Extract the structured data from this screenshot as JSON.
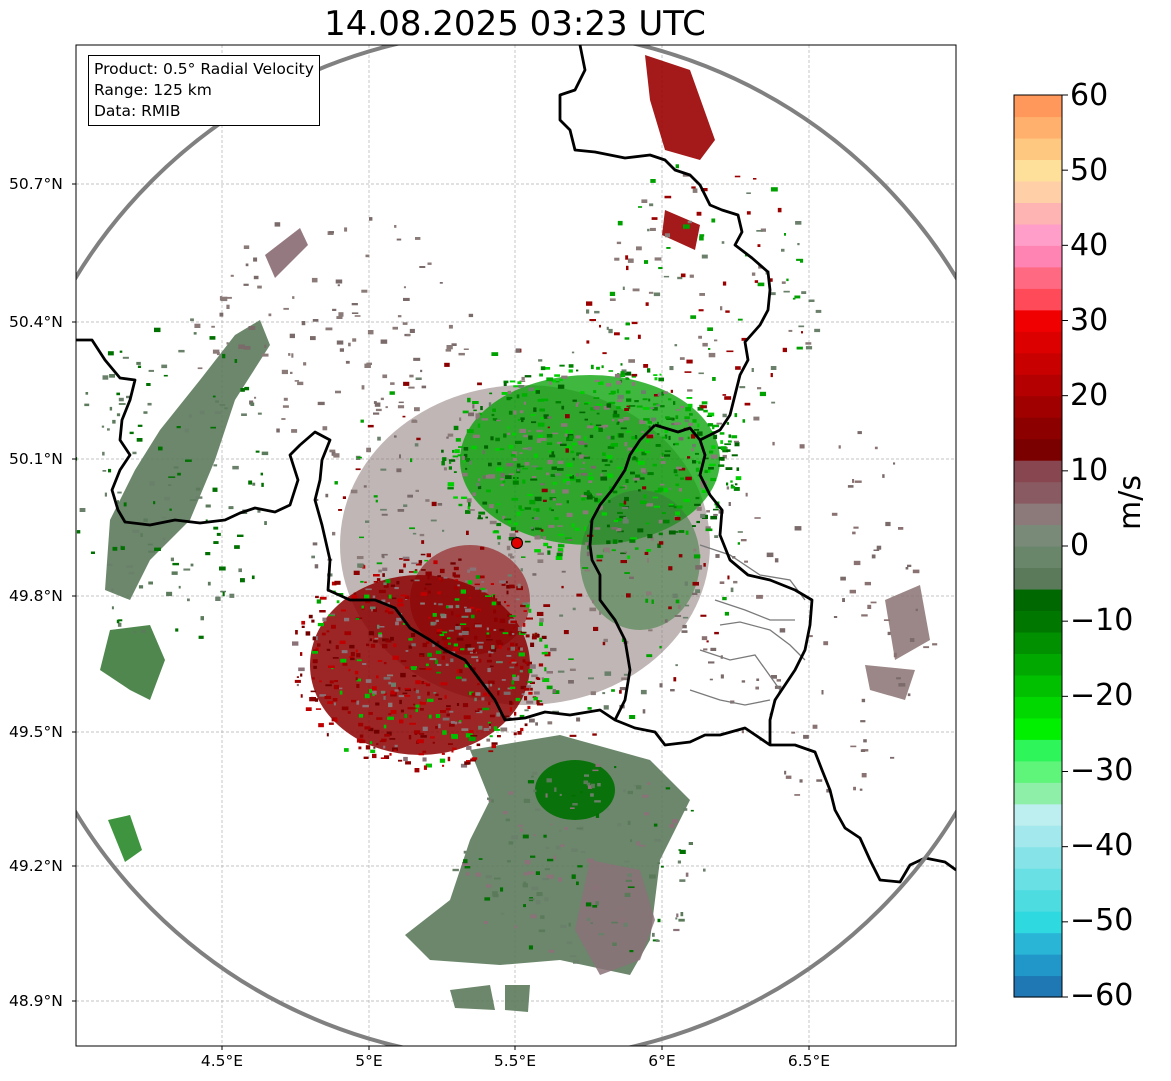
{
  "title": "14.08.2025 03:23 UTC",
  "info": {
    "product": "Product: 0.5° Radial Velocity",
    "range": "Range: 125 km",
    "data": "Data: RMIB"
  },
  "map": {
    "lat_labels": [
      "50.7°N",
      "50.4°N",
      "50.1°N",
      "49.8°N",
      "49.5°N",
      "49.2°N",
      "48.9°N"
    ],
    "lon_labels": [
      "4.5°E",
      "5°E",
      "5.5°E",
      "6°E",
      "6.5°E"
    ],
    "radar_site_marker_color": "#e00000",
    "range_ring_color": "#808080",
    "border_color": "#000000"
  },
  "colorbar": {
    "unit": "m/s",
    "ticks": [
      "60",
      "50",
      "40",
      "30",
      "20",
      "10",
      "0",
      "−10",
      "−20",
      "−30",
      "−40",
      "−50",
      "−60"
    ],
    "min": -60,
    "max": 60,
    "colors": [
      "#1f77b4",
      "#2196c8",
      "#29b6d6",
      "#2ed9e0",
      "#4ddce0",
      "#69e0e4",
      "#86e4e8",
      "#a2e8ec",
      "#bdeef0",
      "#8ef0a8",
      "#5ef57a",
      "#2ef55a",
      "#00f000",
      "#00d800",
      "#00c000",
      "#00a800",
      "#009000",
      "#007800",
      "#006800",
      "#5a7a5a",
      "#6a866a",
      "#7a8a78",
      "#8c7a7a",
      "#8a5a62",
      "#884650",
      "#7a0000",
      "#8c0000",
      "#a00000",
      "#b40000",
      "#c80000",
      "#dc0000",
      "#f00000",
      "#ff4a5a",
      "#ff6a82",
      "#ff84b4",
      "#ff9ec8",
      "#ffb4b4",
      "#ffd0a8",
      "#ffe09a",
      "#ffc880",
      "#ffb06c",
      "#ff985a"
    ]
  }
}
